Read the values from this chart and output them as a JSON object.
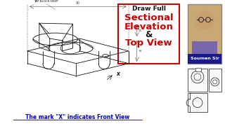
{
  "bg_color": "#ffffff",
  "title_line1": "Draw Full",
  "title_line2": "Sectional",
  "title_line3": "Elevation",
  "title_line4": "&",
  "title_line5": "Top View",
  "subtitle": "The mark \"X\" indicates Front View",
  "text_red": "#cc0000",
  "text_blue": "#0000cc",
  "text_black": "#111111",
  "text_dark": "#333333",
  "dim_color": "#555555",
  "name_label": "Soumen Sir",
  "name_bg": "#1a1a8c",
  "photo_bg": "#c8a875",
  "face_color": "#c8a070",
  "body_color": "#7766aa",
  "box_border": "#cc0000",
  "blk": "#111111"
}
